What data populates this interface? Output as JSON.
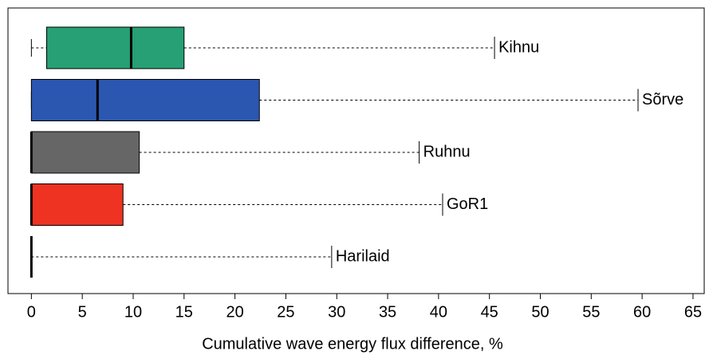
{
  "chart_data": {
    "type": "boxplot",
    "orientation": "horizontal",
    "xlabel": "Cumulative wave energy flux difference, %",
    "xlim": [
      -2.3,
      66.1
    ],
    "xticks": [
      0,
      5,
      10,
      15,
      20,
      25,
      30,
      35,
      40,
      45,
      50,
      55,
      60,
      65
    ],
    "boxes": [
      {
        "name": "Kihnu",
        "color": "#26a074",
        "min": 0,
        "q1": 1.5,
        "median": 9.8,
        "q3": 15.0,
        "max": 45.5
      },
      {
        "name": "Sõrve",
        "color": "#2b57b0",
        "min": 0,
        "q1": 0,
        "median": 6.5,
        "q3": 22.4,
        "max": 59.6
      },
      {
        "name": "Ruhnu",
        "color": "#666666",
        "min": 0,
        "q1": 0,
        "median": 0,
        "q3": 10.6,
        "max": 38.1
      },
      {
        "name": "GoR1",
        "color": "#ee3322",
        "min": 0,
        "q1": 0,
        "median": 0,
        "q3": 9.0,
        "max": 40.4
      },
      {
        "name": "Harilaid",
        "color": "#666666",
        "min": 0,
        "q1": 0,
        "median": 0,
        "q3": 0,
        "max": 29.5
      }
    ]
  }
}
